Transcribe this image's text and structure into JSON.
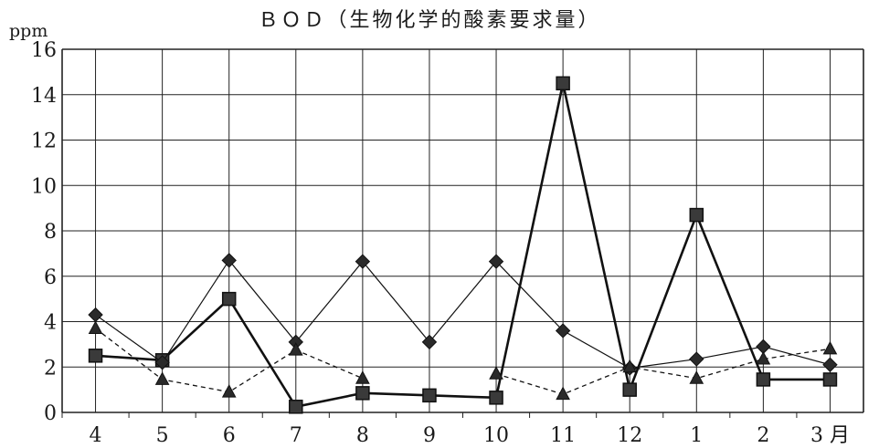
{
  "chart_data": {
    "type": "line",
    "title": "ＢＯＤ（生物化学的酸素要求量）",
    "ylabel": "ppm",
    "xlabel": "",
    "x_unit_suffix": "月",
    "categories": [
      "4",
      "5",
      "6",
      "7",
      "8",
      "9",
      "10",
      "11",
      "12",
      "1",
      "2",
      "3"
    ],
    "ylim": [
      0,
      16
    ],
    "yticks": [
      0,
      2,
      4,
      6,
      8,
      10,
      12,
      14,
      16
    ],
    "grid": true,
    "legend": "none",
    "series": [
      {
        "marker": "square",
        "line_style": "solid-thick",
        "values": [
          2.5,
          2.3,
          5.0,
          0.25,
          0.85,
          0.75,
          0.65,
          14.5,
          1.0,
          8.7,
          1.45,
          1.45
        ]
      },
      {
        "marker": "diamond",
        "line_style": "solid-thin",
        "values": [
          4.3,
          2.2,
          6.7,
          3.1,
          6.65,
          3.1,
          6.65,
          3.6,
          1.95,
          2.35,
          2.9,
          2.1
        ]
      },
      {
        "marker": "triangle",
        "line_style": "dashed",
        "values": [
          3.7,
          1.45,
          0.9,
          2.75,
          1.5,
          null,
          1.7,
          0.8,
          2.0,
          1.5,
          2.35,
          2.8
        ]
      }
    ]
  }
}
